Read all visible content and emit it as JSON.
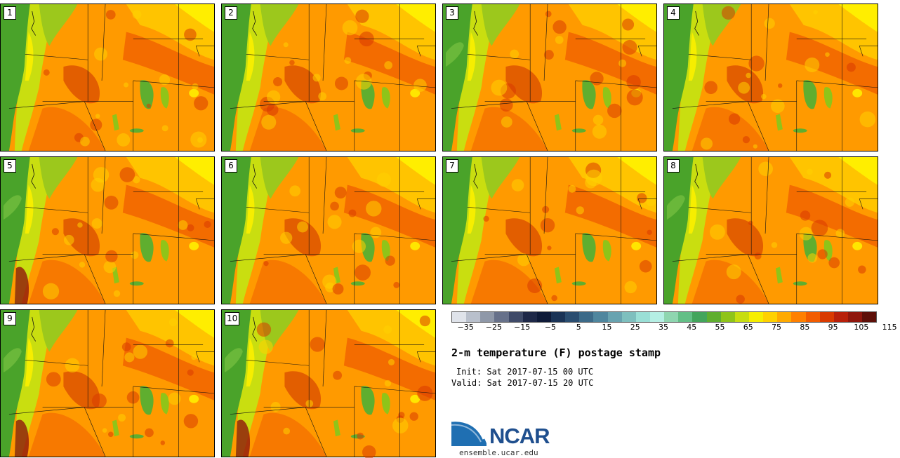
{
  "panels": [
    {
      "label": "1",
      "variant": 0
    },
    {
      "label": "2",
      "variant": 1
    },
    {
      "label": "3",
      "variant": 2
    },
    {
      "label": "4",
      "variant": 3
    },
    {
      "label": "5",
      "variant": 4
    },
    {
      "label": "6",
      "variant": 5
    },
    {
      "label": "7",
      "variant": 6
    },
    {
      "label": "8",
      "variant": 7
    },
    {
      "label": "9",
      "variant": 8
    },
    {
      "label": "10",
      "variant": 9
    }
  ],
  "legend": {
    "colors": [
      "#dfe3ea",
      "#b9c0cc",
      "#8f98a8",
      "#67718a",
      "#3f4a68",
      "#1e2848",
      "#0e1a38",
      "#1a3356",
      "#2a4d70",
      "#3c6a88",
      "#4f869e",
      "#68a3b0",
      "#7ebfbe",
      "#9adfd6",
      "#b5efe4",
      "#8fd6b0",
      "#63bf86",
      "#43a55c",
      "#5fae2f",
      "#8fc419",
      "#c7dd10",
      "#f6ee00",
      "#ffd100",
      "#ffaa00",
      "#ff8000",
      "#f25c00",
      "#d93a00",
      "#b8200a",
      "#8f160c",
      "#5d0f08"
    ],
    "ticks": [
      "−35",
      "−25",
      "−15",
      "−5",
      "5",
      "15",
      "25",
      "35",
      "45",
      "55",
      "65",
      "75",
      "85",
      "95",
      "105",
      "115"
    ]
  },
  "title": "2-m temperature (F) postage stamp",
  "init_line": "Init: Sat 2017-07-15 00 UTC",
  "valid_line": "Valid: Sat 2017-07-15 20 UTC",
  "logo": {
    "text": "NCAR",
    "url": "ensemble.ucar.edu"
  }
}
